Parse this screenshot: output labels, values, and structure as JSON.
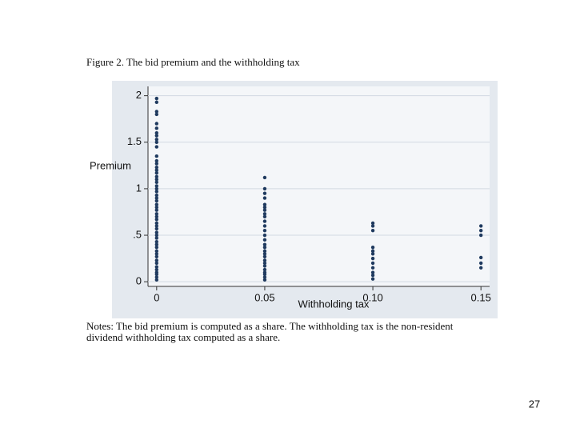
{
  "chart_data": {
    "type": "scatter",
    "title": "Figure 2. The bid premium and the withholding tax",
    "x_label": "Withholding tax",
    "y_label": "Premium",
    "notes": [
      "Notes: The bid premium is computed as a share. The withholding tax is the non-resident",
      "dividend withholding tax computed as a share."
    ],
    "color": "#1f3a5f",
    "x": [
      0,
      0,
      0,
      0,
      0,
      0,
      0,
      0,
      0,
      0,
      0,
      0,
      0,
      0,
      0,
      0,
      0,
      0,
      0,
      0,
      0,
      0,
      0,
      0,
      0,
      0,
      0,
      0,
      0,
      0,
      0,
      0,
      0,
      0,
      0,
      0,
      0,
      0,
      0,
      0,
      0,
      0,
      0,
      0,
      0,
      0,
      0,
      0,
      0,
      0,
      0,
      0,
      0.05,
      0.05,
      0.05,
      0.05,
      0.05,
      0.05,
      0.05,
      0.05,
      0.05,
      0.05,
      0.05,
      0.05,
      0.05,
      0.05,
      0.05,
      0.05,
      0.05,
      0.05,
      0.05,
      0.05,
      0.05,
      0.05,
      0.05,
      0.05,
      0.05,
      0.05,
      0.05,
      0.1,
      0.1,
      0.1,
      0.1,
      0.1,
      0.1,
      0.1,
      0.1,
      0.1,
      0.1,
      0.1,
      0.1,
      0.15,
      0.15,
      0.15,
      0.15,
      0.15,
      0.15
    ],
    "values": [
      0.02,
      0.05,
      0.08,
      0.1,
      0.13,
      0.16,
      0.2,
      0.23,
      0.27,
      0.3,
      0.33,
      0.37,
      0.4,
      0.43,
      0.47,
      0.5,
      0.53,
      0.57,
      0.6,
      0.63,
      0.67,
      0.7,
      0.73,
      0.77,
      0.8,
      0.83,
      0.87,
      0.9,
      0.93,
      0.97,
      1.0,
      1.03,
      1.07,
      1.1,
      1.13,
      1.17,
      1.2,
      1.23,
      1.27,
      1.3,
      1.35,
      1.45,
      1.5,
      1.53,
      1.57,
      1.6,
      1.65,
      1.7,
      1.8,
      1.83,
      1.93,
      1.97,
      0.02,
      0.05,
      0.08,
      0.1,
      0.13,
      0.17,
      0.2,
      0.23,
      0.27,
      0.3,
      0.33,
      0.37,
      0.4,
      0.45,
      0.5,
      0.55,
      0.6,
      0.65,
      0.7,
      0.73,
      0.77,
      0.8,
      0.83,
      0.9,
      0.95,
      1.0,
      1.12,
      0.03,
      0.07,
      0.1,
      0.15,
      0.2,
      0.25,
      0.3,
      0.33,
      0.37,
      0.55,
      0.6,
      0.63,
      0.15,
      0.2,
      0.26,
      0.5,
      0.55,
      0.6
    ],
    "xlim": [
      -0.004,
      0.154
    ],
    "ylim": [
      -0.05,
      2.1
    ],
    "xticks": [
      0,
      0.05,
      {
        "value": 0.1,
        "label": "0.10"
      },
      0.15
    ],
    "yticks": [
      0,
      {
        "value": 0.5,
        "label": ".5"
      },
      1,
      1.5,
      2
    ],
    "grid": true
  },
  "page_number": "27"
}
